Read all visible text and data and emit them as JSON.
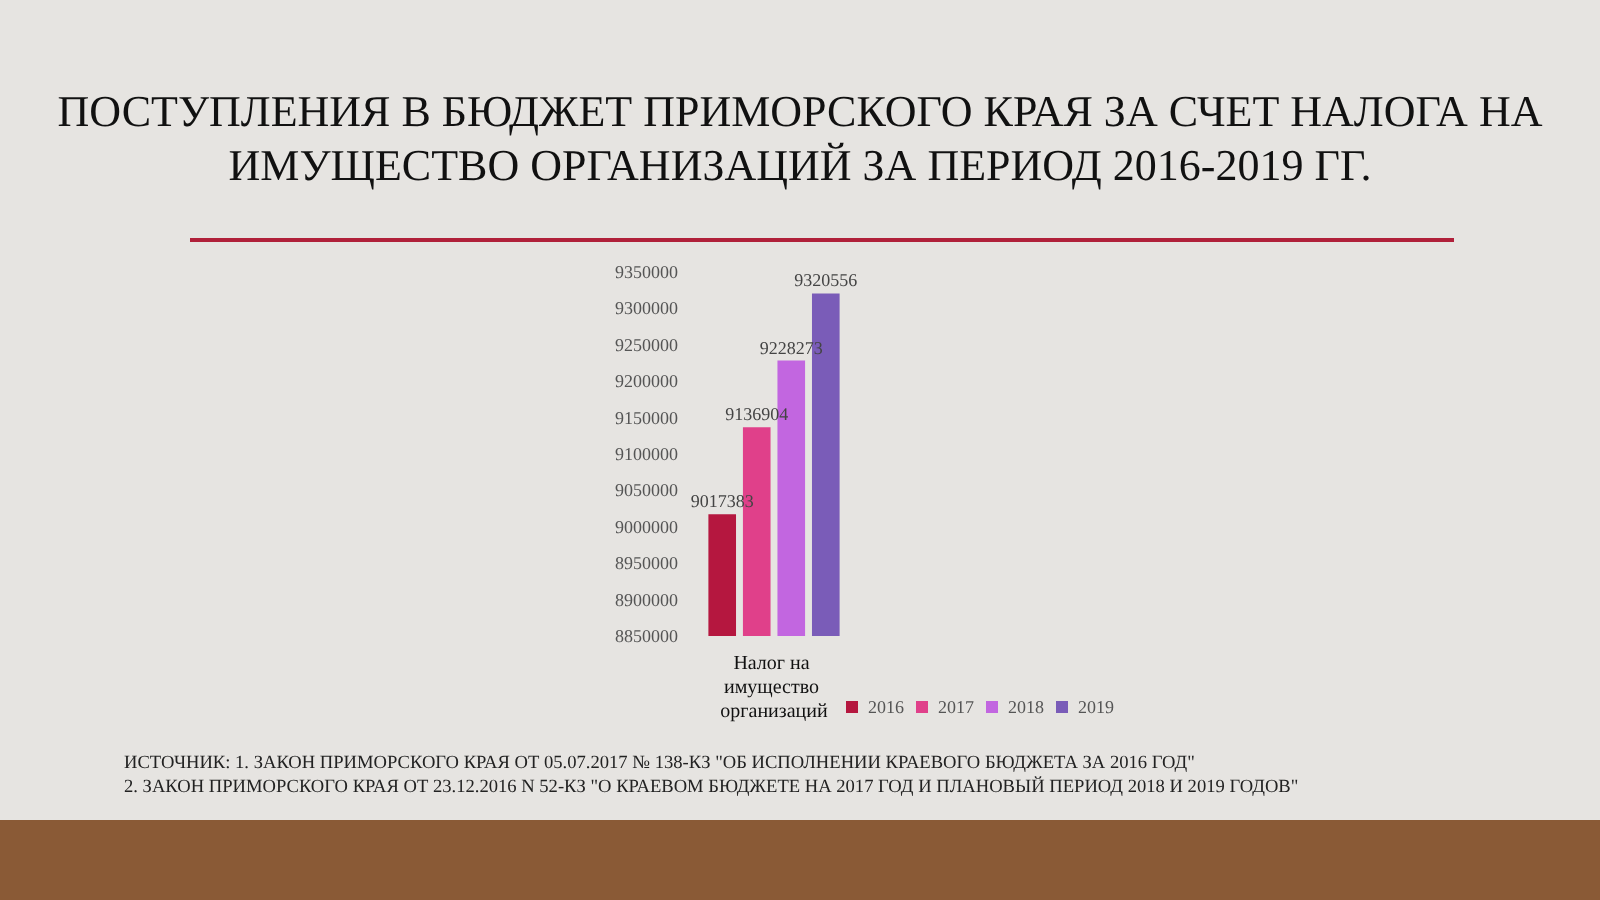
{
  "chart_data": {
    "type": "bar",
    "title": "ПОСТУПЛЕНИЯ  В БЮДЖЕТ ПРИМОРСКОГО КРАЯ ЗА СЧЕТ НАЛОГА НА ИМУЩЕСТВО ОРГАНИЗАЦИЙ ЗА ПЕРИОД 2016-2019 ГГ.",
    "categories": [
      "Налог на имущество организаций"
    ],
    "series": [
      {
        "name": "2016",
        "color": "#b5173f",
        "values": [
          9017383
        ]
      },
      {
        "name": "2017",
        "color": "#e0408a",
        "values": [
          9136904
        ]
      },
      {
        "name": "2018",
        "color": "#c266e0",
        "values": [
          9228273
        ]
      },
      {
        "name": "2019",
        "color": "#7a5cb8",
        "values": [
          9320556
        ]
      }
    ],
    "ylim": [
      8850000,
      9350000
    ],
    "yticks": [
      8850000,
      8900000,
      8950000,
      9000000,
      9050000,
      9100000,
      9150000,
      9200000,
      9250000,
      9300000,
      9350000
    ],
    "data_labels": true,
    "grid": false,
    "legend": "bottom",
    "annotations": [
      "ИСТОЧНИК: 1. ЗАКОН ПРИМОРСКОГО КРАЯ ОТ 05.07.2017 № 138-КЗ \"ОБ ИСПОЛНЕНИИ КРАЕВОГО БЮДЖЕТА ЗА 2016 ГОД\"",
      "2. ЗАКОН ПРИМОРСКОГО КРАЯ ОТ 23.12.2016 N 52-КЗ \"О КРАЕВОМ БЮДЖЕТЕ НА 2017 ГОД И ПЛАНОВЫЙ ПЕРИОД 2018 И 2019 ГОДОВ\""
    ]
  }
}
